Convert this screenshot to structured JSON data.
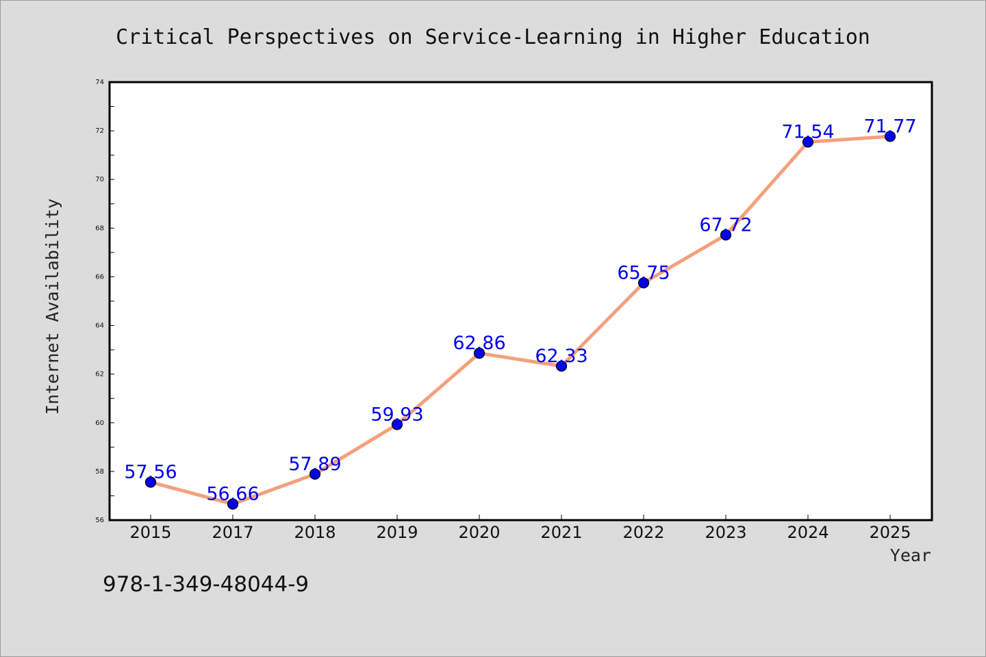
{
  "chart_data": {
    "type": "line",
    "title": "Critical Perspectives on Service-Learning in Higher Education",
    "xlabel": "Year",
    "ylabel": "Internet Availability",
    "categories": [
      "2015",
      "2017",
      "2018",
      "2019",
      "2020",
      "2021",
      "2022",
      "2023",
      "2024",
      "2025"
    ],
    "series": [
      {
        "values": [
          57.56,
          56.66,
          57.89,
          59.93,
          62.86,
          62.33,
          65.75,
          67.72,
          71.54,
          71.77
        ],
        "labels": [
          "57.56",
          "56.66",
          "57.89",
          "59.93",
          "62.86",
          "62.33",
          "65.75",
          "67.72",
          "71.54",
          "71.77"
        ]
      }
    ],
    "ylim": [
      56,
      74
    ],
    "yticks": [
      "56",
      "58",
      "60",
      "62",
      "64",
      "66",
      "68",
      "70",
      "72",
      "74"
    ],
    "grid": false,
    "legend": "none",
    "line_color": "#f4a07c",
    "marker_color": "#0000ee",
    "label_color": "#0000ee"
  },
  "annotation": {
    "isbn": "978-1-349-48044-9"
  }
}
